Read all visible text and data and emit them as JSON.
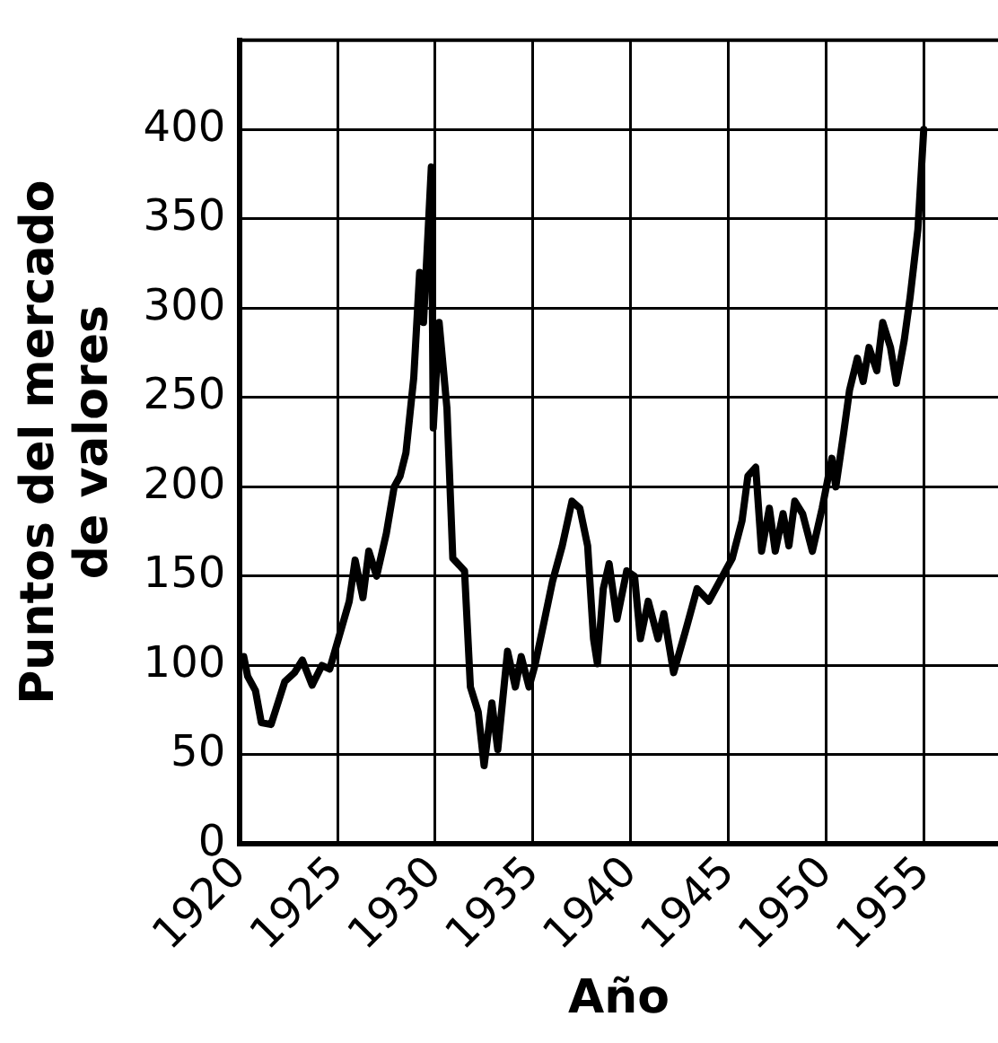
{
  "chart_data": {
    "type": "line",
    "xlabel": "Año",
    "ylabel": "Puntos del mercado de valores",
    "xlim": [
      1920,
      1958.8
    ],
    "xticks": [
      1920,
      1925,
      1930,
      1935,
      1940,
      1945,
      1950,
      1955
    ],
    "ylim": [
      0,
      450
    ],
    "yticks": [
      0,
      50,
      100,
      150,
      200,
      250,
      300,
      350,
      400
    ],
    "grid": true,
    "marker": "none",
    "line_style": "solid",
    "series": [
      {
        "color": "#000000",
        "x": [
          1920.2,
          1920.4,
          1920.8,
          1921.1,
          1921.6,
          1922.3,
          1922.8,
          1923.2,
          1923.7,
          1924.2,
          1924.6,
          1925.1,
          1925.6,
          1925.9,
          1926.3,
          1926.6,
          1927,
          1927.5,
          1927.9,
          1928.2,
          1928.5,
          1928.9,
          1929.2,
          1929.4,
          1929.8,
          1929.9,
          1930.2,
          1930.6,
          1930.9,
          1931.5,
          1931.8,
          1932.2,
          1932.5,
          1932.9,
          1933.2,
          1933.7,
          1934.1,
          1934.4,
          1934.8,
          1935.1,
          1935.6,
          1936,
          1936.5,
          1937,
          1937.4,
          1937.8,
          1938.1,
          1938.3,
          1938.6,
          1938.9,
          1939.3,
          1939.8,
          1940.2,
          1940.5,
          1940.9,
          1941.4,
          1941.7,
          1942.2,
          1942.8,
          1943.4,
          1944,
          1944.7,
          1945.2,
          1945.7,
          1946,
          1946.4,
          1946.7,
          1947.1,
          1947.4,
          1947.8,
          1948.1,
          1948.4,
          1948.8,
          1949.3,
          1949.8,
          1950.3,
          1950.5,
          1950.9,
          1951.2,
          1951.6,
          1951.9,
          1952.2,
          1952.6,
          1952.9,
          1953.3,
          1953.6,
          1954,
          1954.3,
          1954.7,
          1955
        ],
        "values": [
          105,
          94,
          86,
          68,
          67,
          91,
          96,
          103,
          89,
          100,
          98,
          117,
          136,
          159,
          138,
          164,
          150,
          174,
          200,
          206,
          219,
          261,
          320,
          292,
          379,
          233,
          292,
          244,
          160,
          153,
          88,
          74,
          44,
          79,
          53,
          108,
          88,
          105,
          88,
          100,
          126,
          147,
          167,
          192,
          188,
          167,
          115,
          101,
          143,
          157,
          126,
          153,
          150,
          115,
          136,
          115,
          129,
          96,
          119,
          143,
          136,
          150,
          160,
          181,
          206,
          211,
          164,
          188,
          164,
          185,
          167,
          192,
          185,
          164,
          188,
          216,
          200,
          230,
          254,
          272,
          259,
          278,
          265,
          292,
          278,
          258,
          282,
          306,
          344,
          400
        ]
      }
    ]
  }
}
